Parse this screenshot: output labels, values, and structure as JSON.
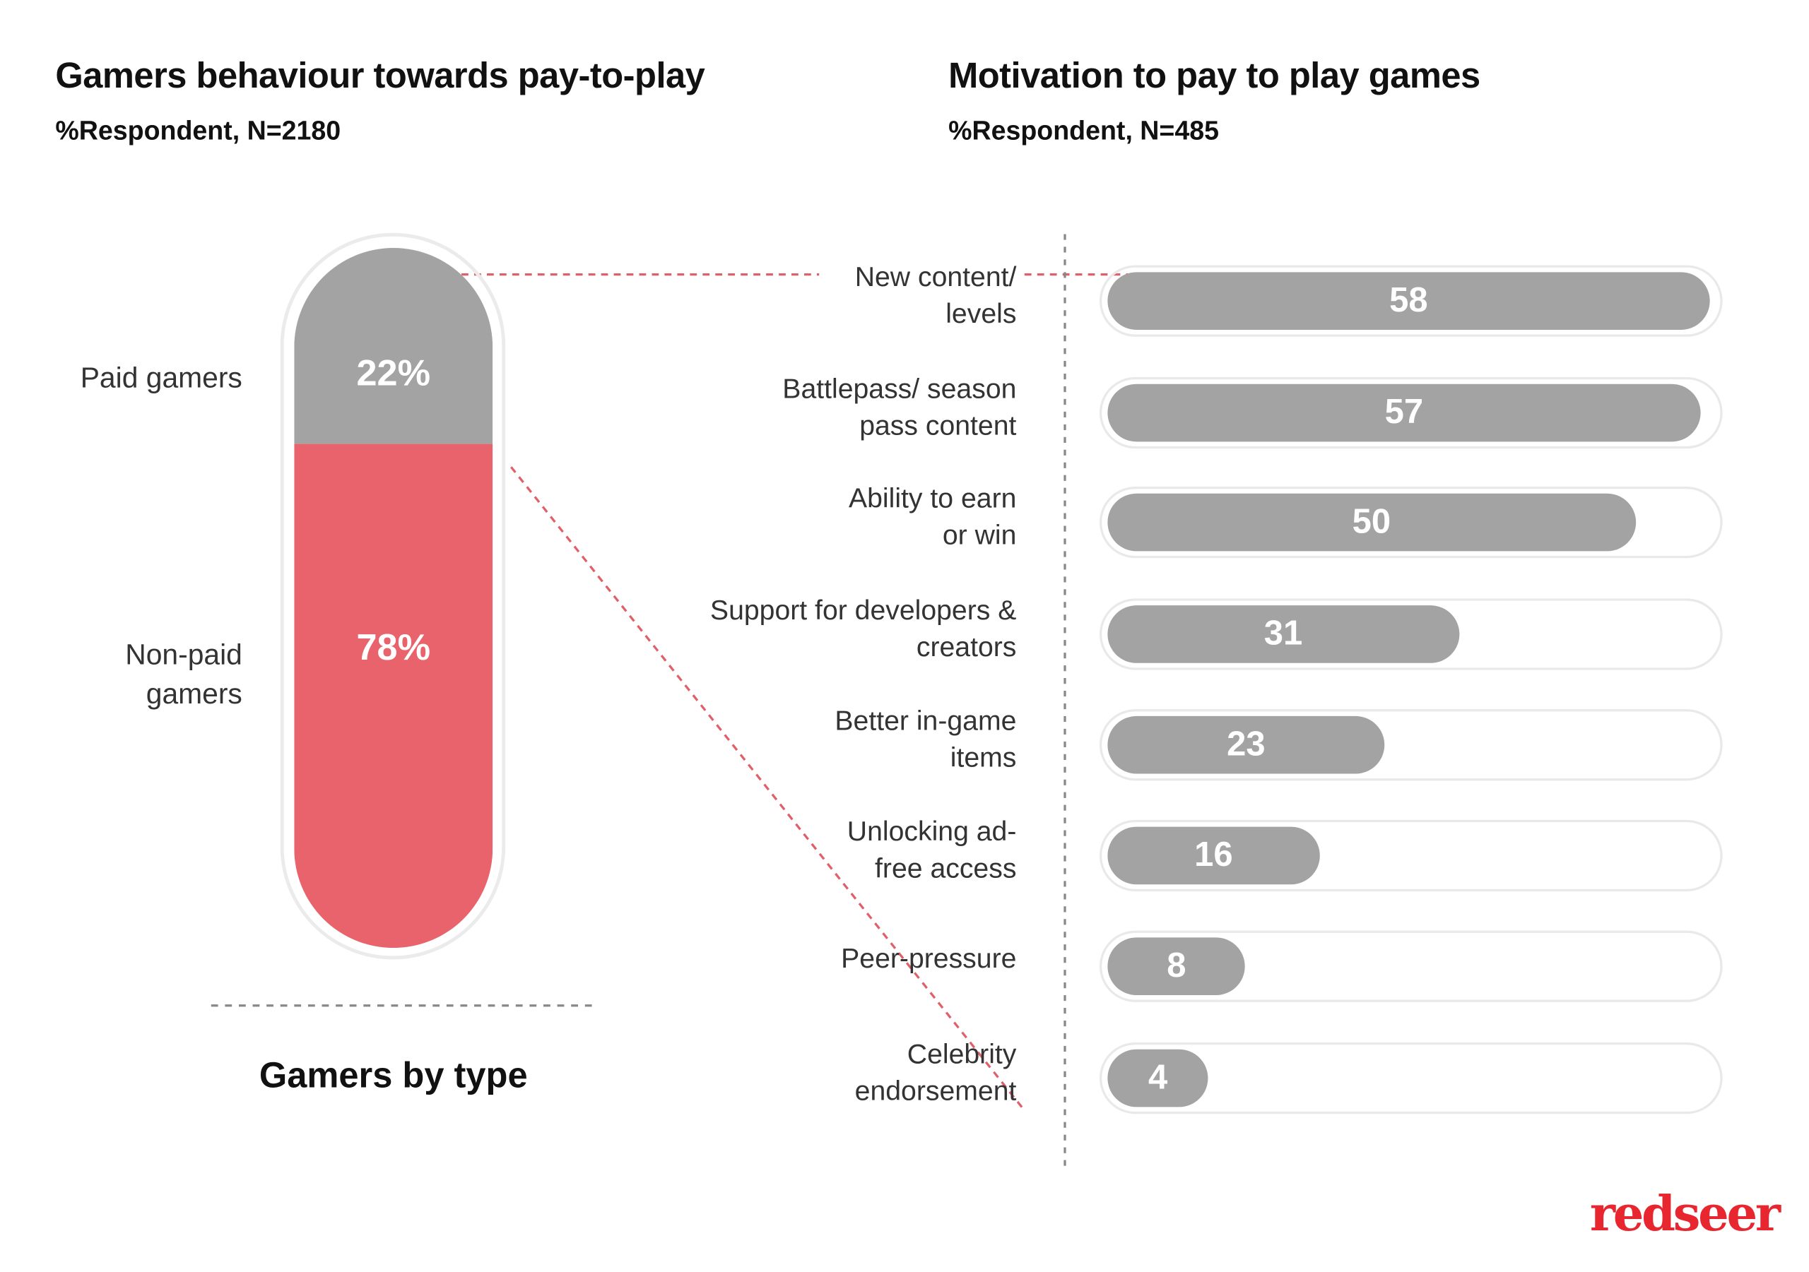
{
  "left": {
    "title": "Gamers behaviour towards pay-to-play",
    "subtitle": "%Respondent, N=2180",
    "footer": "Gamers by type"
  },
  "right": {
    "title": "Motivation to pay to play games",
    "subtitle": "%Respondent, N=485"
  },
  "logo": "redseer",
  "colors": {
    "gray": "#a3a3a3",
    "red": "#e8636b",
    "logo": "#e8262f"
  },
  "chart_data": [
    {
      "type": "bar",
      "stacked": true,
      "title": "Gamers behaviour towards pay-to-play",
      "subtitle": "%Respondent, N=2180",
      "xlabel": "Gamers by type",
      "categories": [
        "Paid gamers",
        "Non-paid gamers"
      ],
      "values": [
        22,
        78
      ],
      "labels": [
        "22%",
        "78%"
      ]
    },
    {
      "type": "bar",
      "orientation": "horizontal",
      "title": "Motivation to pay to play games",
      "subtitle": "%Respondent, N=485",
      "categories": [
        "New content/ levels",
        "Battlepass/ season pass content",
        "Ability to earn or win",
        "Support for developers & creators",
        "Better in-game items",
        "Unlocking ad-free access",
        "Peer-pressure",
        "Celebrity endorsement"
      ],
      "values": [
        58,
        57,
        50,
        31,
        23,
        16,
        8,
        4
      ]
    }
  ]
}
